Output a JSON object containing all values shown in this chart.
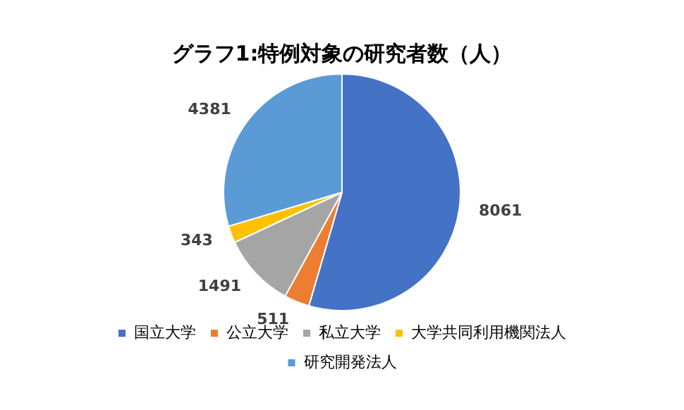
{
  "chart_data": {
    "type": "pie",
    "title": "グラフ1:特例対象の研究者数（人）",
    "categories": [
      "国立大学",
      "公立大学",
      "私立大学",
      "大学共同利用機関法人",
      "研究開発法人"
    ],
    "values": [
      8061,
      511,
      1491,
      343,
      4381
    ],
    "colors": [
      "#4472c4",
      "#ed7d31",
      "#a5a5a5",
      "#ffc000",
      "#5b9bd5"
    ],
    "data_labels": true,
    "legend": "bottom"
  }
}
